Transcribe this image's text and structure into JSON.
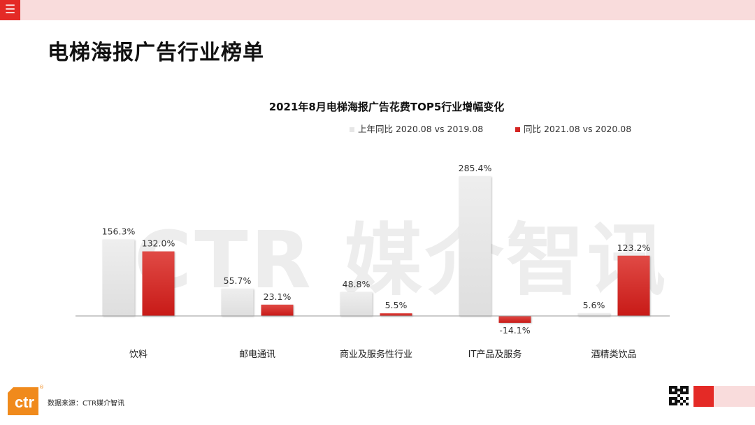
{
  "header": {
    "menu_icon": "hamburger-menu-icon",
    "page_title": "电梯海报广告行业榜单"
  },
  "watermark": "CTR 媒介智讯",
  "chart_data": {
    "type": "bar",
    "title": "2021年8月电梯海报广告花费TOP5行业增幅变化",
    "categories": [
      "饮料",
      "邮电通讯",
      "商业及服务性行业",
      "IT产品及服务",
      "酒精类饮品"
    ],
    "series": [
      {
        "name": "上年同比 2020.08 vs 2019.08",
        "values": [
          156.3,
          55.7,
          48.8,
          285.4,
          5.6
        ],
        "labels": [
          "156.3%",
          "55.7%",
          "48.8%",
          "285.4%",
          "5.6%"
        ],
        "color": "#e6e6e6"
      },
      {
        "name": "同比 2021.08 vs 2020.08",
        "values": [
          132.0,
          23.1,
          5.5,
          -14.1,
          123.2
        ],
        "labels": [
          "132.0%",
          "23.1%",
          "5.5%",
          "-14.1%",
          "123.2%"
        ],
        "color": "#d42522"
      }
    ],
    "ylim": [
      -20,
      290
    ],
    "unit": "%",
    "legend": "top",
    "grid": false
  },
  "footer": {
    "source": "数据来源：CTR媒介智讯",
    "logo_text": "ctr",
    "logo_mark": "®",
    "qr_icon": "qr-code-icon"
  },
  "colors": {
    "accent_red": "#e42a26",
    "light_pink": "#f9dcdc"
  }
}
